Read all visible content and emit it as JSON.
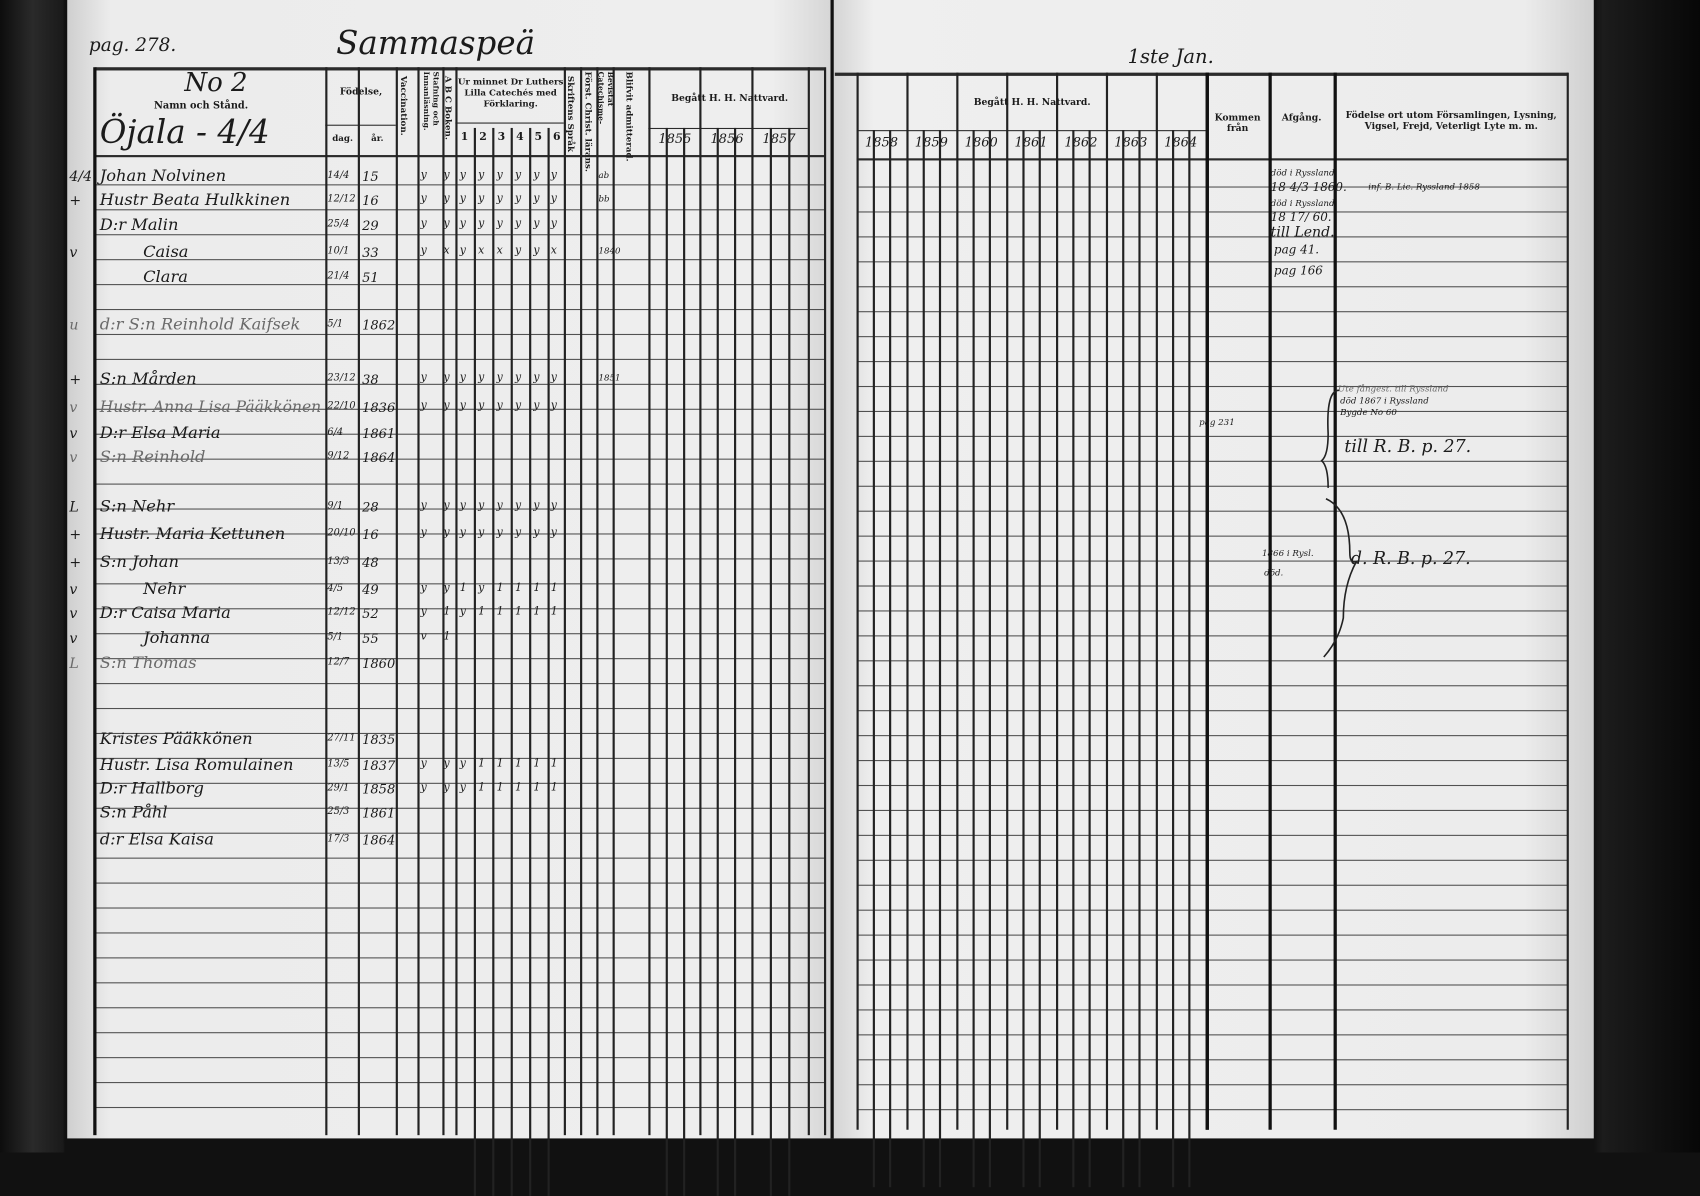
{
  "document": {
    "page_ref": "pag. 278.",
    "village": "Sammaspeä",
    "number_label": "No 2",
    "date_note": "1ste Jan.",
    "household": "Öjala - 4/4",
    "header_left": {
      "name_col": "Namn och Stånd.",
      "birth": "Födelse,",
      "birth_day": "dag.",
      "birth_year": "år.",
      "vaccination": "Vaccination.",
      "reading": "Stafning och Innanläsning.",
      "abc": "A B C Boken.",
      "catechism": "Ur minnet Dr Luthers Lilla Catechés med Förklaring.",
      "catechism_parts": [
        "1",
        "2",
        "3",
        "4",
        "5",
        "6"
      ],
      "scripture": "Skriftens Språk",
      "christian": "Först. Christ. lärans.",
      "hearings": "Bevistat Catechisme-förhören.",
      "admitted": "Blifvit admitterad.",
      "communion": "Begått H. H. Nattvard.",
      "years": [
        "1855",
        "1856",
        "1857"
      ]
    },
    "header_right": {
      "communion": "Begått H. H. Nattvard.",
      "years": [
        "1858",
        "1859",
        "1860",
        "1861",
        "1862",
        "1863",
        "1864"
      ],
      "came_from": "Kommen från",
      "departure": "Afgång.",
      "remarks": "Födelse ort utom Församlingen, Lysning, Vigsel, Frejd, Veterligt Lyte m. m."
    },
    "entries": [
      {
        "mark": "4/4",
        "name": "Johan Nolvinen",
        "day": "14/4",
        "year": "15",
        "checks": [
          "y",
          "y",
          "y",
          "y",
          "y",
          "y",
          "y",
          "y"
        ],
        "extra": "ab"
      },
      {
        "mark": "+",
        "name": "Hustr Beata Hulkkinen",
        "day": "12/12",
        "year": "16",
        "checks": [
          "y",
          "y",
          "y",
          "y",
          "y",
          "y",
          "y",
          "y"
        ],
        "extra": "bb"
      },
      {
        "mark": "",
        "name": "D:r Malin",
        "day": "25/4",
        "year": "29",
        "checks": [
          "y",
          "y",
          "y",
          "y",
          "y",
          "y",
          "y",
          "y"
        ],
        "extra": ""
      },
      {
        "mark": "v",
        "name": "Caisa",
        "day": "10/1",
        "year": "33",
        "checks": [
          "y",
          "x",
          "y",
          "x",
          "x",
          "y",
          "y",
          "x"
        ],
        "extra": "1840"
      },
      {
        "mark": "",
        "name": "Clara",
        "day": "21/4",
        "year": "51",
        "checks": [],
        "extra": ""
      },
      {
        "mark": "u",
        "name": "d:r S:n Reinhold Kaifsek",
        "day": "5/1",
        "year": "1862",
        "checks": [],
        "extra": "",
        "faint": true
      },
      {
        "mark": "+",
        "name": "S:n Mården",
        "day": "23/12",
        "year": "38",
        "checks": [
          "y",
          "y",
          "y",
          "y",
          "y",
          "y",
          "y",
          "y"
        ],
        "extra": "1851"
      },
      {
        "mark": "v",
        "name": "Hustr. Anna Lisa Pääkkönen",
        "day": "22/10",
        "year": "1836",
        "checks": [
          "y",
          "y",
          "y",
          "y",
          "y",
          "y",
          "y",
          "y"
        ],
        "extra": "",
        "faint": true
      },
      {
        "mark": "v",
        "name": "D:r Elsa Maria",
        "day": "6/4",
        "year": "1861",
        "checks": [],
        "extra": ""
      },
      {
        "mark": "v",
        "name": "S:n Reinhold",
        "day": "9/12",
        "year": "1864",
        "checks": [],
        "extra": "",
        "faint": true
      },
      {
        "mark": "L",
        "name": "S:n Nehr",
        "day": "9/1",
        "year": "28",
        "checks": [
          "y",
          "y",
          "y",
          "y",
          "y",
          "y",
          "y",
          "y"
        ],
        "extra": ""
      },
      {
        "mark": "+",
        "name": "Hustr. Maria Kettunen",
        "day": "20/10",
        "year": "16",
        "checks": [
          "y",
          "y",
          "y",
          "y",
          "y",
          "y",
          "y",
          "y"
        ],
        "extra": ""
      },
      {
        "mark": "+",
        "name": "S:n Johan",
        "day": "13/3",
        "year": "48",
        "checks": [],
        "extra": ""
      },
      {
        "mark": "v",
        "name": "Nehr",
        "day": "4/5",
        "year": "49",
        "checks": [
          "y",
          "y",
          "1",
          "y",
          "1",
          "1",
          "1",
          "1"
        ],
        "extra": ""
      },
      {
        "mark": "v",
        "name": "D:r Caisa Maria",
        "day": "12/12",
        "year": "52",
        "checks": [
          "y",
          "1",
          "y",
          "1",
          "1",
          "1",
          "1",
          "1"
        ],
        "extra": ""
      },
      {
        "mark": "v",
        "name": "Johanna",
        "day": "5/1",
        "year": "55",
        "checks": [
          "v",
          "1"
        ],
        "extra": ""
      },
      {
        "mark": "L",
        "name": "S:n Thomas",
        "day": "12/7",
        "year": "1860",
        "checks": [],
        "extra": "",
        "faint": true
      },
      {
        "mark": "",
        "name": "Kristes Pääkkönen",
        "day": "27/11",
        "year": "1835",
        "checks": [],
        "extra": ""
      },
      {
        "mark": "",
        "name": "Hustr. Lisa Romulainen",
        "day": "13/5",
        "year": "1837",
        "checks": [
          "y",
          "y",
          "y",
          "1",
          "1",
          "1",
          "1",
          "1"
        ],
        "extra": ""
      },
      {
        "mark": "",
        "name": "D:r Hallborg",
        "day": "29/1",
        "year": "1858",
        "checks": [
          "y",
          "y",
          "y",
          "1",
          "1",
          "1",
          "1",
          "1"
        ],
        "extra": ""
      },
      {
        "mark": "",
        "name": "S:n Påhl",
        "day": "25/3",
        "year": "1861",
        "checks": [],
        "extra": ""
      },
      {
        "mark": "",
        "name": "d:r Elsa Kaisa",
        "day": "17/3",
        "year": "1864",
        "checks": [],
        "extra": ""
      }
    ],
    "notes": {
      "departure_1": "död i Ryssland",
      "departure_1_date": "18 4/3 1860.",
      "departure_2": "död i Ryssland",
      "departure_2_date": "18 17/ 60.",
      "departure_3": "till Lend.",
      "departure_3_ref": "pag 41.",
      "departure_4": "pag 166",
      "remark_1": "inf. B. Lic. Ryssland 1858",
      "came_from_1": "pag 231",
      "remark_2": "Ute fångest. till Ryssland",
      "remark_3": "död 1867 i Ryssland",
      "remark_4": "Bygde No 60",
      "remark_5": "till R. B. p. 27.",
      "came_from_2": "1866 i Rysl.",
      "came_from_2b": "död.",
      "remark_6": "d. R. B. p. 27."
    }
  }
}
